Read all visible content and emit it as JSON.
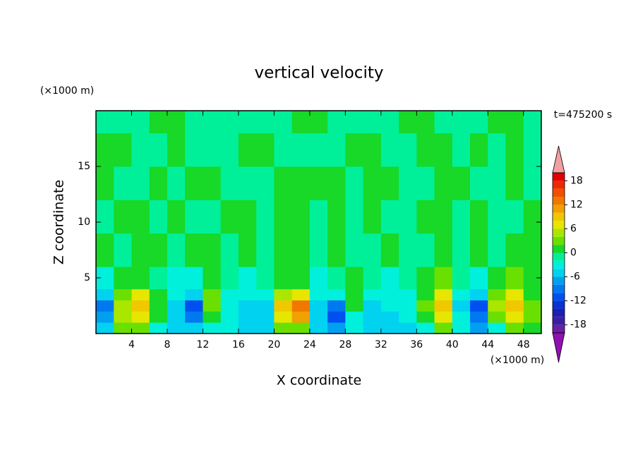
{
  "chart_data": {
    "type": "contour",
    "title": "vertical velocity",
    "x_label": "X coordinate",
    "y_label": "Z coordinate",
    "x_unit_label": "(×1000 m)",
    "y_unit_label": "(×1000 m)",
    "time_label": "t=475200 s",
    "xlim": [
      0,
      50
    ],
    "ylim": [
      0,
      20
    ],
    "xticks": [
      4,
      8,
      12,
      16,
      20,
      24,
      28,
      32,
      36,
      40,
      44,
      48
    ],
    "yticks": [
      5,
      10,
      15
    ],
    "x_bins": [
      0,
      2,
      4,
      6,
      8,
      10,
      12,
      14,
      16,
      18,
      20,
      22,
      24,
      26,
      28,
      30,
      32,
      34,
      36,
      38,
      40,
      42,
      44,
      46,
      48,
      50
    ],
    "z_bins": [
      0,
      1,
      2,
      3,
      4,
      6,
      9,
      12,
      15,
      18,
      20
    ],
    "values": [
      [
        -5,
        3,
        3,
        -3,
        -5,
        -5,
        -3,
        -3,
        -5,
        -5,
        3,
        3,
        -5,
        -7,
        -3,
        -5,
        -5,
        -5,
        -3,
        3,
        -3,
        -7,
        -3,
        3,
        1
      ],
      [
        -7,
        5,
        7,
        1,
        -5,
        -9,
        1,
        -3,
        -5,
        -5,
        7,
        11,
        -5,
        -11,
        -3,
        -5,
        -5,
        -3,
        1,
        7,
        -3,
        -9,
        3,
        7,
        3
      ],
      [
        -9,
        5,
        9,
        1,
        -5,
        -11,
        3,
        -3,
        -5,
        -5,
        9,
        13,
        -5,
        -9,
        1,
        -5,
        -3,
        -3,
        3,
        9,
        -5,
        -11,
        5,
        9,
        3
      ],
      [
        -5,
        3,
        7,
        1,
        -3,
        -5,
        3,
        -3,
        -3,
        -3,
        5,
        7,
        -3,
        -3,
        1,
        -3,
        -3,
        -3,
        1,
        7,
        -3,
        -5,
        3,
        7,
        1
      ],
      [
        -3,
        1,
        1,
        -1,
        -3,
        -3,
        1,
        -1,
        -3,
        -1,
        1,
        1,
        -3,
        -1,
        1,
        -1,
        -3,
        -1,
        1,
        3,
        -1,
        -3,
        1,
        3,
        1
      ],
      [
        1,
        -1,
        1,
        1,
        -1,
        1,
        1,
        -1,
        1,
        -1,
        1,
        1,
        -1,
        1,
        -1,
        -1,
        1,
        -1,
        -1,
        1,
        -1,
        1,
        -1,
        1,
        1
      ],
      [
        -1,
        1,
        1,
        -1,
        1,
        -1,
        -1,
        1,
        1,
        -1,
        1,
        1,
        -1,
        1,
        -1,
        1,
        -1,
        -1,
        1,
        1,
        -1,
        1,
        -1,
        -1,
        1
      ],
      [
        1,
        -1,
        -1,
        1,
        -1,
        1,
        1,
        -1,
        -1,
        -1,
        1,
        1,
        1,
        1,
        -1,
        1,
        1,
        -1,
        -1,
        1,
        1,
        -1,
        -1,
        1,
        -1
      ],
      [
        1,
        1,
        -1,
        -1,
        1,
        -1,
        -1,
        -1,
        1,
        1,
        -1,
        -1,
        -1,
        -1,
        1,
        1,
        -1,
        -1,
        1,
        1,
        -1,
        1,
        -1,
        1,
        -1
      ],
      [
        -1,
        -1,
        -1,
        1,
        1,
        -1,
        -1,
        -1,
        -1,
        -1,
        -1,
        1,
        1,
        -1,
        -1,
        -1,
        -1,
        1,
        1,
        -1,
        -1,
        -1,
        1,
        1,
        -1
      ]
    ],
    "levels": [
      -20,
      -18,
      -16,
      -14,
      -12,
      -10,
      -8,
      -6,
      -4,
      -2,
      0,
      2,
      4,
      6,
      8,
      10,
      12,
      14,
      16,
      18,
      20
    ],
    "colors": [
      "#6a1fa8",
      "#3a1fa0",
      "#1e1eb4",
      "#0a32d2",
      "#0050f0",
      "#0078f0",
      "#00a0f0",
      "#00d2f0",
      "#00f0dc",
      "#00f09a",
      "#18d828",
      "#6ae000",
      "#aae600",
      "#e6e600",
      "#f0c800",
      "#f0a000",
      "#f07800",
      "#f05000",
      "#f02800",
      "#e00000"
    ],
    "under_color": "#9010b0",
    "over_color": "#f0a0a0",
    "colorbar_ticks": [
      -18,
      -12,
      -6,
      0,
      6,
      12,
      18
    ]
  }
}
